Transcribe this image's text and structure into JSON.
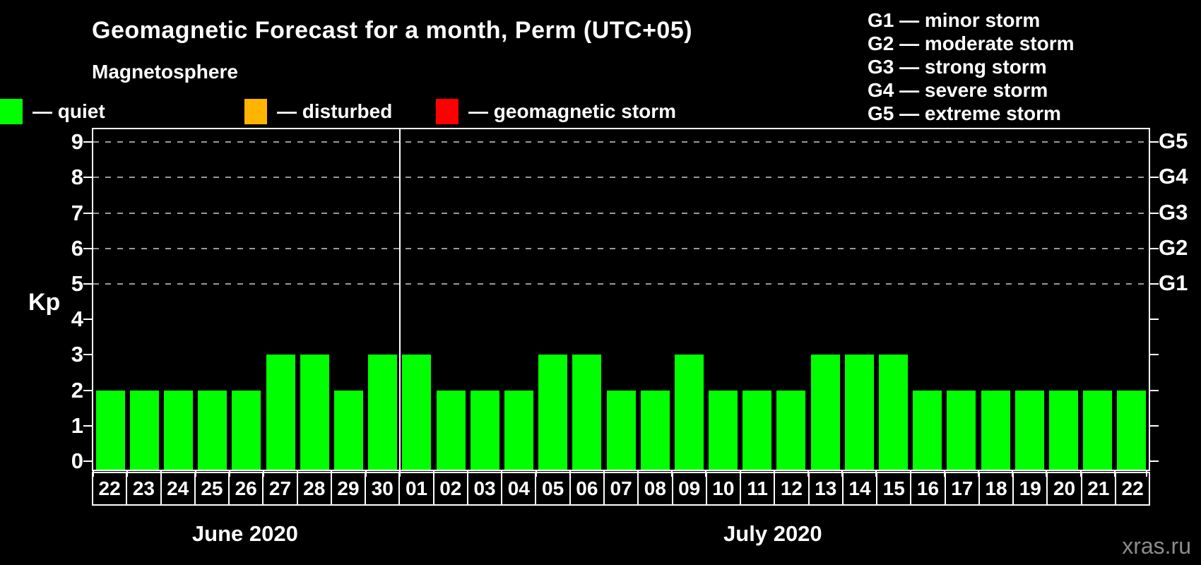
{
  "title": "Geomagnetic Forecast for a month, Perm (UTC+05)",
  "legend": {
    "heading": "Magnetosphere",
    "items": [
      {
        "name": "quiet",
        "label": "— quiet",
        "color": "#00ff00"
      },
      {
        "name": "disturbed",
        "label": "— disturbed",
        "color": "#ffb400"
      },
      {
        "name": "geomagnetic-storm",
        "label": "— geomagnetic storm",
        "color": "#ff0000"
      }
    ]
  },
  "g_scale_legend": [
    "G1 — minor storm",
    "G2 — moderate storm",
    "G3 — strong storm",
    "G4 — severe storm",
    "G5 — extreme storm"
  ],
  "watermark": "xras.ru",
  "chart_data": {
    "type": "bar",
    "title": "Geomagnetic Forecast for a month, Perm (UTC+05)",
    "xlabel": "",
    "ylabel": "Kp",
    "ylim": [
      0,
      9
    ],
    "y_ticks": [
      0,
      1,
      2,
      3,
      4,
      5,
      6,
      7,
      8,
      9
    ],
    "grid": "dashed horizontal gridlines at Kp 5,6,7,8,9 only",
    "grid_levels": [
      5,
      6,
      7,
      8,
      9
    ],
    "right_axis_labels": [
      {
        "kp": 5,
        "label": "G1"
      },
      {
        "kp": 6,
        "label": "G2"
      },
      {
        "kp": 7,
        "label": "G3"
      },
      {
        "kp": 8,
        "label": "G4"
      },
      {
        "kp": 9,
        "label": "G5"
      }
    ],
    "bar_color": "#00ff00",
    "bar_status_all": "quiet",
    "months": [
      {
        "label": "June 2020",
        "categories": [
          "22",
          "23",
          "24",
          "25",
          "26",
          "27",
          "28",
          "29",
          "30"
        ],
        "values": [
          2,
          2,
          2,
          2,
          2,
          3,
          3,
          2,
          3
        ]
      },
      {
        "label": "July 2020",
        "categories": [
          "01",
          "02",
          "03",
          "04",
          "05",
          "06",
          "07",
          "08",
          "09",
          "10",
          "11",
          "12",
          "13",
          "14",
          "15",
          "16",
          "17",
          "18",
          "19",
          "20",
          "21",
          "22"
        ],
        "values": [
          3,
          2,
          2,
          2,
          3,
          3,
          2,
          2,
          3,
          2,
          2,
          2,
          3,
          3,
          3,
          2,
          2,
          2,
          2,
          2,
          2,
          2
        ]
      }
    ]
  }
}
